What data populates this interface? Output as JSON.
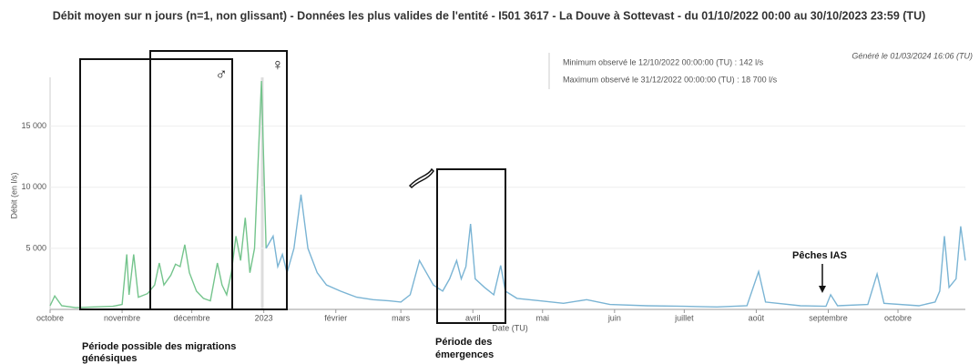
{
  "chart_data": {
    "type": "line",
    "title": "Débit moyen sur n jours (n=1, non glissant) - Données les plus valides de l'entité - I501 3617 - La Douve à Sottevast - du 01/10/2022 00:00 au 30/10/2023 23:59 (TU)",
    "generated": "Généré le 01/03/2024 16:06 (TU)",
    "tooltip": [
      "Minimum observé le 12/10/2022 00:00:00 (TU) : 142 l/s",
      "Maximum observé le 31/12/2022 00:00:00 (TU) : 18 700 l/s"
    ],
    "ylabel": "Débit (en l/s)",
    "xlabel": "Date (TU)",
    "xlim": [
      "2022-10-01",
      "2023-10-30"
    ],
    "ylim": [
      0,
      19000
    ],
    "yticks": [
      {
        "value": 5000,
        "label": "5 000"
      },
      {
        "value": 10000,
        "label": "10 000"
      },
      {
        "value": 15000,
        "label": "15 000"
      }
    ],
    "xticks": [
      {
        "value": "2022-10-01",
        "label": "octobre"
      },
      {
        "value": "2022-11-01",
        "label": "novembre"
      },
      {
        "value": "2022-12-01",
        "label": "décembre"
      },
      {
        "value": "2023-01-01",
        "label": "2023"
      },
      {
        "value": "2023-02-01",
        "label": "février"
      },
      {
        "value": "2023-03-01",
        "label": "mars"
      },
      {
        "value": "2023-04-01",
        "label": "avril"
      },
      {
        "value": "2023-05-01",
        "label": "mai"
      },
      {
        "value": "2023-06-01",
        "label": "juin"
      },
      {
        "value": "2023-07-01",
        "label": "juillet"
      },
      {
        "value": "2023-08-01",
        "label": "août"
      },
      {
        "value": "2023-09-01",
        "label": "septembre"
      },
      {
        "value": "2023-10-01",
        "label": "octobre"
      }
    ],
    "series": [
      {
        "color": "#74c48c",
        "x": [
          "2022-10-01",
          "2022-10-03",
          "2022-10-06",
          "2022-10-12",
          "2022-10-20",
          "2022-10-28",
          "2022-11-01",
          "2022-11-03",
          "2022-11-04",
          "2022-11-06",
          "2022-11-08",
          "2022-11-12",
          "2022-11-15",
          "2022-11-17",
          "2022-11-19",
          "2022-11-22",
          "2022-11-24",
          "2022-11-26",
          "2022-11-28",
          "2022-11-30",
          "2022-12-03",
          "2022-12-06",
          "2022-12-09",
          "2022-12-12",
          "2022-12-14",
          "2022-12-16",
          "2022-12-18",
          "2022-12-20",
          "2022-12-22",
          "2022-12-24",
          "2022-12-26",
          "2022-12-28",
          "2022-12-31",
          "2023-01-02"
        ],
        "values": [
          300,
          1100,
          300,
          142,
          200,
          250,
          400,
          4500,
          1200,
          4500,
          1000,
          1300,
          2000,
          3800,
          2000,
          2800,
          3700,
          3500,
          5300,
          3000,
          1500,
          900,
          700,
          3800,
          2000,
          1200,
          3000,
          6000,
          4000,
          7500,
          3000,
          5000,
          18700,
          5000
        ]
      },
      {
        "color": "#7ab4d4",
        "x": [
          "2023-01-02",
          "2023-01-05",
          "2023-01-07",
          "2023-01-09",
          "2023-01-11",
          "2023-01-14",
          "2023-01-17",
          "2023-01-20",
          "2023-01-24",
          "2023-01-28",
          "2023-02-03",
          "2023-02-10",
          "2023-02-17",
          "2023-02-24",
          "2023-03-01",
          "2023-03-05",
          "2023-03-09",
          "2023-03-12",
          "2023-03-15",
          "2023-03-19",
          "2023-03-22",
          "2023-03-25",
          "2023-03-27",
          "2023-03-29",
          "2023-03-31",
          "2023-04-02",
          "2023-04-06",
          "2023-04-10",
          "2023-04-13",
          "2023-04-15",
          "2023-04-20",
          "2023-04-30",
          "2023-05-10",
          "2023-05-20",
          "2023-05-30",
          "2023-06-15",
          "2023-07-01",
          "2023-07-15",
          "2023-07-28",
          "2023-08-02",
          "2023-08-05",
          "2023-08-20",
          "2023-08-31",
          "2023-09-02",
          "2023-09-05",
          "2023-09-18",
          "2023-09-22",
          "2023-09-25",
          "2023-10-10",
          "2023-10-17",
          "2023-10-19",
          "2023-10-21",
          "2023-10-23",
          "2023-10-26",
          "2023-10-28",
          "2023-10-30"
        ],
        "values": [
          5000,
          6000,
          3500,
          4500,
          3000,
          5000,
          9400,
          5000,
          3000,
          2000,
          1500,
          1000,
          800,
          700,
          600,
          1200,
          4000,
          3000,
          2000,
          1500,
          2500,
          4000,
          2500,
          3500,
          7000,
          2500,
          1800,
          1200,
          3600,
          1500,
          900,
          700,
          500,
          800,
          400,
          300,
          250,
          200,
          300,
          3100,
          600,
          300,
          250,
          1200,
          300,
          400,
          2900,
          500,
          300,
          600,
          1500,
          6000,
          1800,
          2500,
          6800,
          4000
        ]
      }
    ],
    "annotations": {
      "migration": [
        "Période possible des migrations",
        "génésiques"
      ],
      "emergence": [
        "Période des",
        "émergences"
      ],
      "peches": "Pêches IAS",
      "male": "♂",
      "female": "♀"
    }
  }
}
